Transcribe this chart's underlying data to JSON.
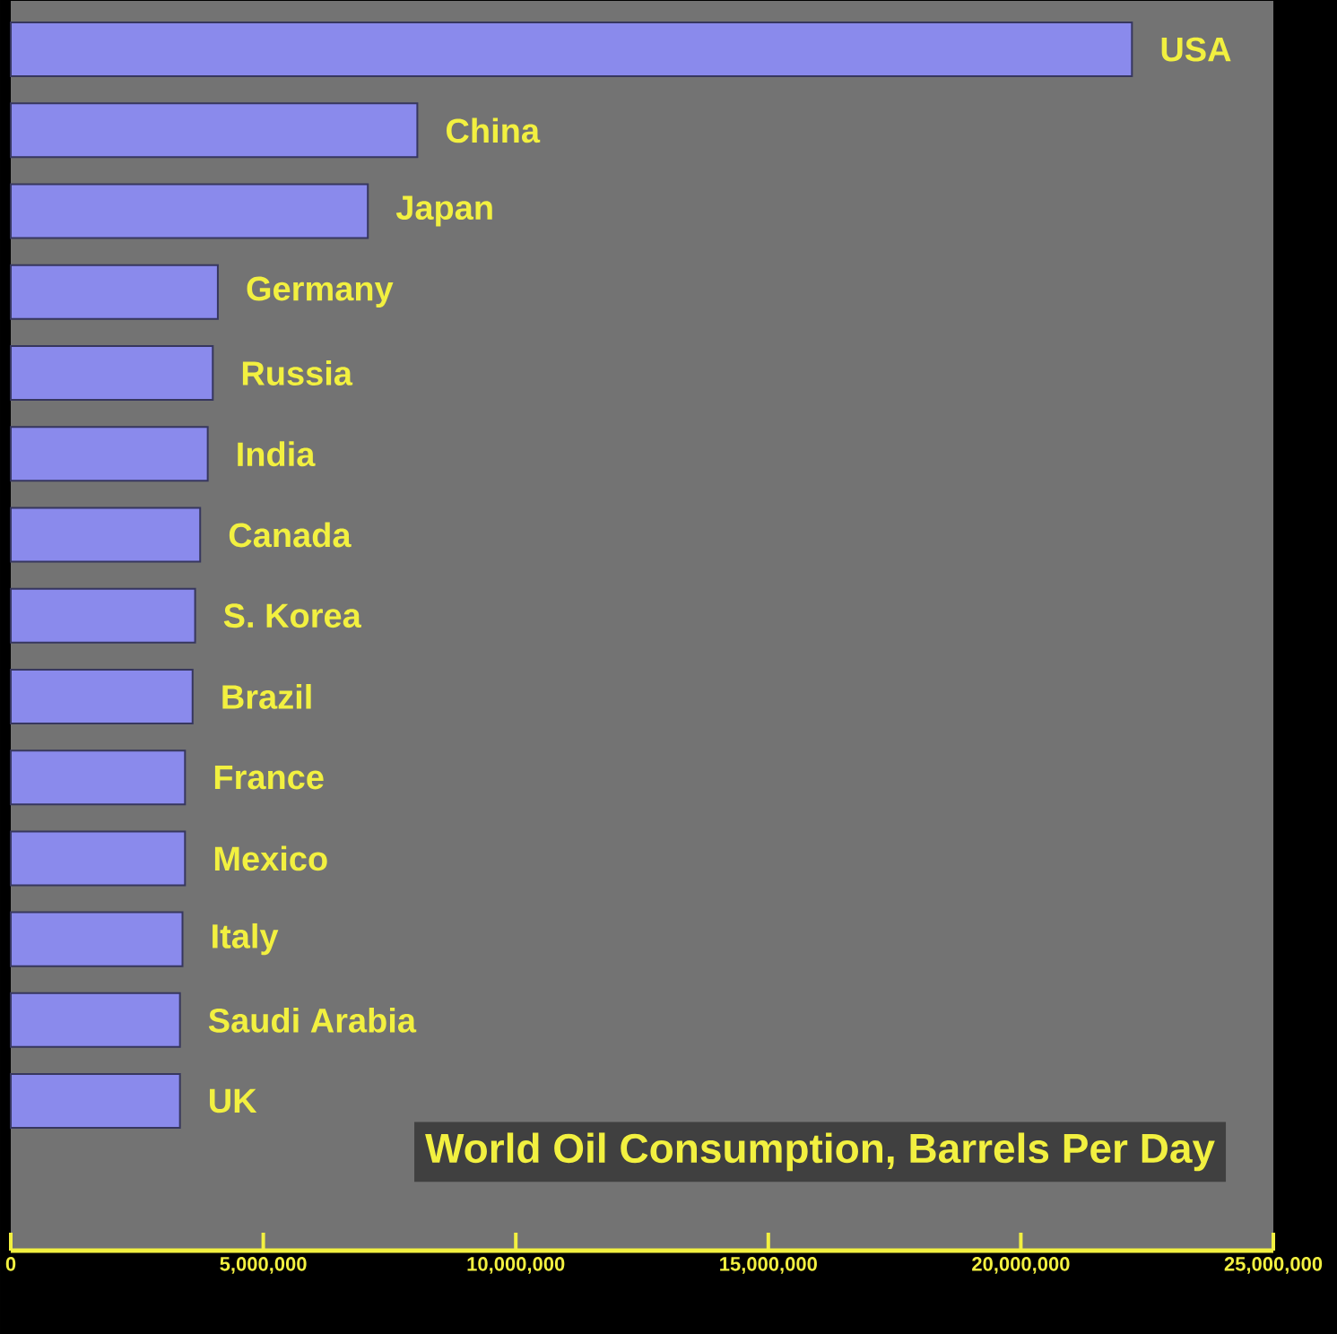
{
  "chart_data": {
    "type": "bar",
    "orientation": "horizontal",
    "title": "World Oil Consumption, Barrels Per Day",
    "categories": [
      "USA",
      "China",
      "Japan",
      "Germany",
      "Russia",
      "India",
      "Canada",
      "S. Korea",
      "Brazil",
      "France",
      "Mexico",
      "Italy",
      "Saudi Arabia",
      "UK"
    ],
    "values": [
      22200000,
      8050000,
      7070000,
      4100000,
      4000000,
      3900000,
      3750000,
      3650000,
      3600000,
      3450000,
      3450000,
      3400000,
      3350000,
      3350000
    ],
    "color": "#8a8aec",
    "xlim": [
      0,
      25000000
    ],
    "xticks": [
      0,
      {
        "value": 5000000,
        "label": "5,000,000"
      },
      {
        "value": 10000000,
        "label": "10,000,000"
      },
      {
        "value": 15000000,
        "label": "15,000,000"
      },
      {
        "value": 20000000,
        "label": "20,000,000"
      },
      {
        "value": 25000000,
        "label": "25,000,000"
      }
    ],
    "tick_labels": "x"
  }
}
